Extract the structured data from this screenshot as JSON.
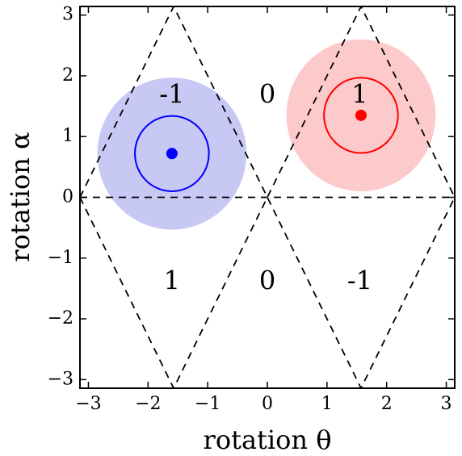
{
  "chart_data": {
    "type": "scatter",
    "title": "",
    "xlabel": "rotation θ",
    "ylabel": "rotation α",
    "xlim": [
      -3.1416,
      3.1416
    ],
    "ylim": [
      -3.1416,
      3.1416
    ],
    "xticks": [
      -3,
      -2,
      -1,
      0,
      1,
      2,
      3
    ],
    "yticks": [
      -3,
      -2,
      -1,
      0,
      1,
      2,
      3
    ],
    "xtick_labels": [
      "−3",
      "−2",
      "−1",
      "0",
      "1",
      "2",
      "3"
    ],
    "ytick_labels": [
      "−3",
      "−2",
      "−1",
      "0",
      "1",
      "2",
      "3"
    ],
    "grid": false,
    "dashed_boundaries": [
      {
        "x": [
          -3.1416,
          -1.5708,
          0,
          1.5708,
          3.1416
        ],
        "y": [
          0,
          3.1416,
          0,
          3.1416,
          0
        ]
      },
      {
        "x": [
          -3.1416,
          -1.5708,
          0,
          1.5708,
          3.1416
        ],
        "y": [
          0,
          -3.1416,
          0,
          -3.1416,
          0
        ]
      },
      {
        "x": [
          -3.1416,
          3.1416
        ],
        "y": [
          0,
          0
        ]
      }
    ],
    "region_labels": [
      {
        "text": "-1",
        "x": -1.6,
        "y": 1.67
      },
      {
        "text": "0",
        "x": 0.0,
        "y": 1.67
      },
      {
        "text": "1",
        "x": 1.55,
        "y": 1.67
      },
      {
        "text": "1",
        "x": -1.6,
        "y": -1.4
      },
      {
        "text": "0",
        "x": 0.0,
        "y": -1.4
      },
      {
        "text": "-1",
        "x": 1.55,
        "y": -1.4
      }
    ],
    "points": [
      {
        "x": -1.6,
        "y": 0.72,
        "color": "#0000ff",
        "inner_radius": 0.62,
        "outer_radius": 1.25,
        "fill": "#c8c8f5"
      },
      {
        "x": 1.57,
        "y": 1.35,
        "color": "#ff0000",
        "inner_radius": 0.62,
        "outer_radius": 1.25,
        "fill": "#fccaca"
      }
    ]
  }
}
